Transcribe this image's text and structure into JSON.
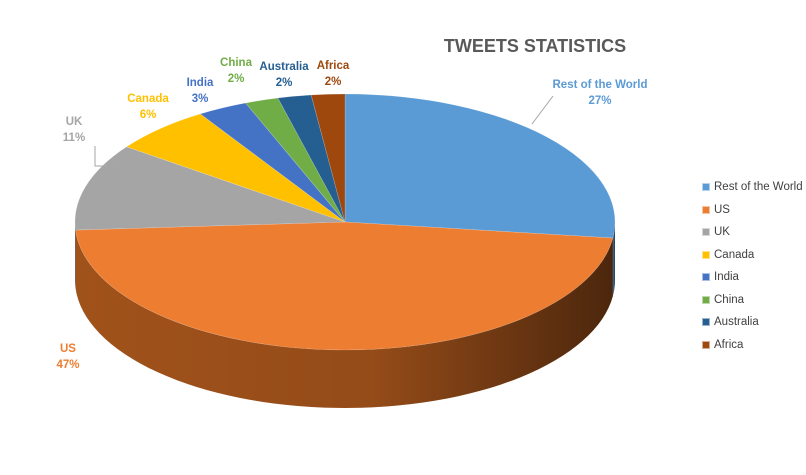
{
  "chart_data": {
    "type": "pie",
    "title": "TWEETS STATISTICS",
    "style": "3d",
    "slices": [
      {
        "label": "Rest of the World",
        "value": 27,
        "display": "27%",
        "color": "#5b9bd5",
        "side": "#3b6a94"
      },
      {
        "label": "US",
        "value": 47,
        "display": "47%",
        "color": "#ed7d31",
        "side": "#a9561c"
      },
      {
        "label": "UK",
        "value": 11,
        "display": "11%",
        "color": "#a5a5a5",
        "side": "#6f6f6f"
      },
      {
        "label": "Canada",
        "value": 6,
        "display": "6%",
        "color": "#ffc000",
        "side": "#b38600"
      },
      {
        "label": "India",
        "value": 3,
        "display": "3%",
        "color": "#4472c4",
        "side": "#2c4c86"
      },
      {
        "label": "China",
        "value": 2,
        "display": "2%",
        "color": "#70ad47",
        "side": "#4c7730"
      },
      {
        "label": "Australia",
        "value": 2,
        "display": "2%",
        "color": "#255e91",
        "side": "#173c5d"
      },
      {
        "label": "Africa",
        "value": 2,
        "display": "2%",
        "color": "#9e480e",
        "side": "#6a3009"
      }
    ],
    "legend_position": "right"
  },
  "colors": {
    "title": "#595959",
    "legend_text": "#404040",
    "leader_line": "#a6a6a6",
    "label_colors": {
      "Rest of the World": "#5b9bd5",
      "US": "#ed7d31",
      "UK": "#a5a5a5",
      "Canada": "#ffc000",
      "India": "#4472c4",
      "China": "#70ad47",
      "Australia": "#255e91",
      "Africa": "#9e480e"
    }
  }
}
